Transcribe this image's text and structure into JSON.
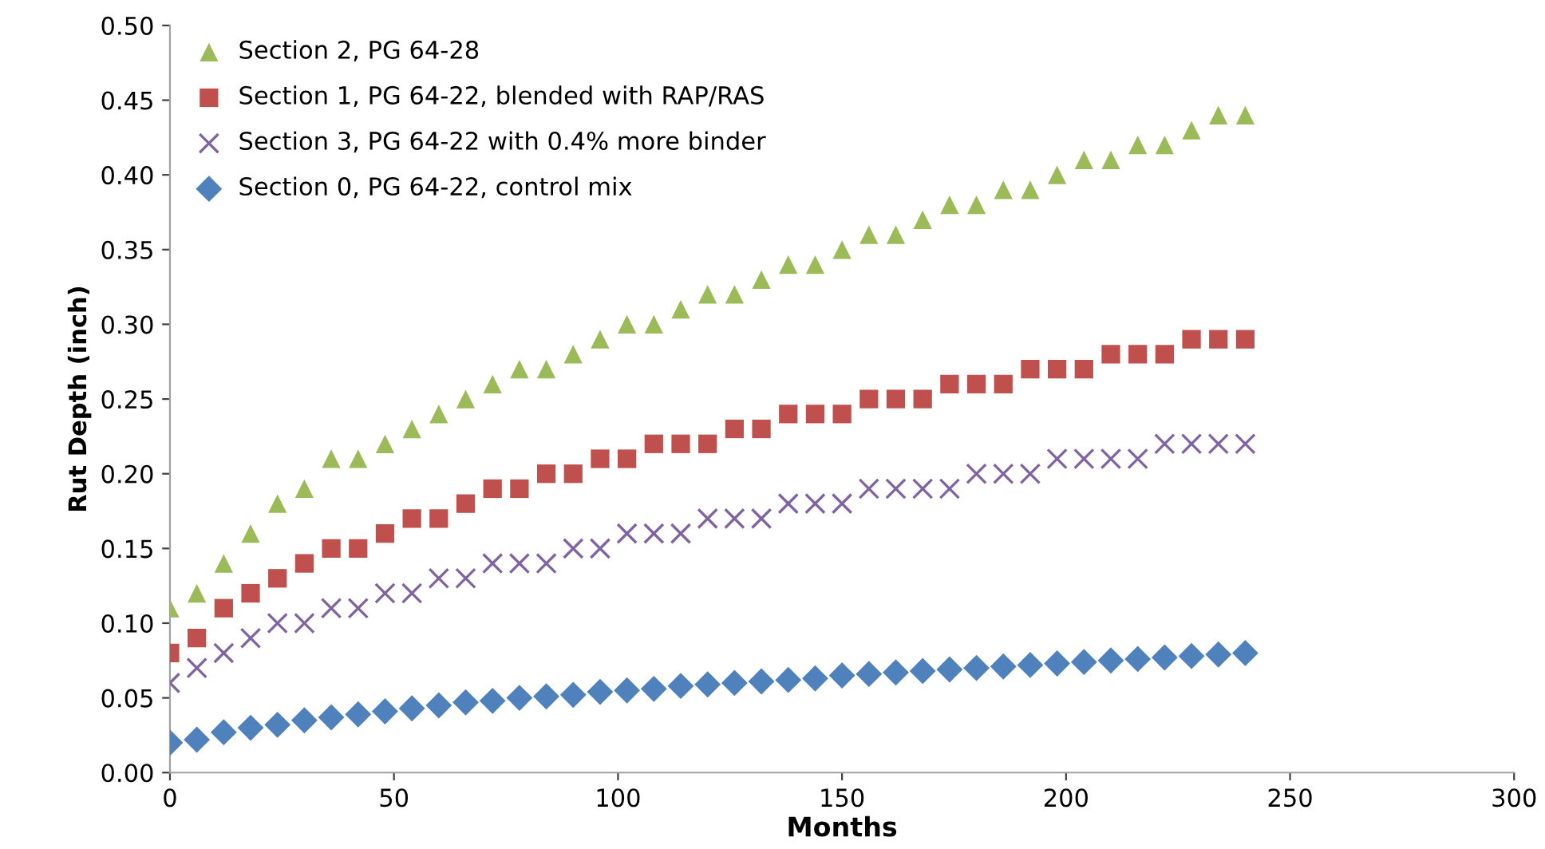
{
  "chart_data": {
    "type": "scatter",
    "xlabel": "Months",
    "ylabel": "Rut Depth (inch)",
    "xlim": [
      0,
      300
    ],
    "xticks": [
      0,
      50,
      100,
      150,
      200,
      250,
      300
    ],
    "ylim": [
      0,
      0.5
    ],
    "yticks": [
      {
        "value": 0,
        "label": "0.00"
      },
      {
        "value": 0.05,
        "label": "0.05"
      },
      {
        "value": 0.1,
        "label": "0.10"
      },
      {
        "value": 0.15,
        "label": "0.15"
      },
      {
        "value": 0.2,
        "label": "0.20"
      },
      {
        "value": 0.25,
        "label": "0.25"
      },
      {
        "value": 0.3,
        "label": "0.30"
      },
      {
        "value": 0.35,
        "label": "0.35"
      },
      {
        "value": 0.4,
        "label": "0.40"
      },
      {
        "value": 0.45,
        "label": "0.45"
      },
      {
        "value": 0.5,
        "label": "0.50"
      }
    ],
    "x": [
      0,
      6,
      12,
      18,
      24,
      30,
      36,
      42,
      48,
      54,
      60,
      66,
      72,
      78,
      84,
      90,
      96,
      102,
      108,
      114,
      120,
      126,
      132,
      138,
      144,
      150,
      156,
      162,
      168,
      174,
      180,
      186,
      192,
      198,
      204,
      210,
      216,
      222,
      228,
      234,
      240
    ],
    "grid": false,
    "legend": "top left",
    "series": [
      {
        "name": "Section 2, PG 64-28",
        "color": "#9bbb59",
        "marker": "triangle",
        "values": [
          0.11,
          0.12,
          0.14,
          0.16,
          0.18,
          0.19,
          0.21,
          0.21,
          0.22,
          0.23,
          0.24,
          0.25,
          0.26,
          0.27,
          0.27,
          0.28,
          0.29,
          0.3,
          0.3,
          0.31,
          0.32,
          0.32,
          0.33,
          0.34,
          0.34,
          0.35,
          0.36,
          0.36,
          0.37,
          0.38,
          0.38,
          0.39,
          0.39,
          0.4,
          0.41,
          0.41,
          0.42,
          0.42,
          0.43,
          0.44,
          0.44
        ]
      },
      {
        "name": "Section 1, PG 64-22, blended with RAP/RAS",
        "color": "#c0504d",
        "marker": "square",
        "values": [
          0.08,
          0.09,
          0.11,
          0.12,
          0.13,
          0.14,
          0.15,
          0.15,
          0.16,
          0.17,
          0.17,
          0.18,
          0.19,
          0.19,
          0.2,
          0.2,
          0.21,
          0.21,
          0.22,
          0.22,
          0.22,
          0.23,
          0.23,
          0.24,
          0.24,
          0.24,
          0.25,
          0.25,
          0.25,
          0.26,
          0.26,
          0.26,
          0.27,
          0.27,
          0.27,
          0.28,
          0.28,
          0.28,
          0.29,
          0.29,
          0.29
        ]
      },
      {
        "name": "Section 3, PG 64-22 with 0.4% more binder",
        "color": "#8064a2",
        "marker": "cross",
        "values": [
          0.06,
          0.07,
          0.08,
          0.09,
          0.1,
          0.1,
          0.11,
          0.11,
          0.12,
          0.12,
          0.13,
          0.13,
          0.14,
          0.14,
          0.14,
          0.15,
          0.15,
          0.16,
          0.16,
          0.16,
          0.17,
          0.17,
          0.17,
          0.18,
          0.18,
          0.18,
          0.19,
          0.19,
          0.19,
          0.19,
          0.2,
          0.2,
          0.2,
          0.21,
          0.21,
          0.21,
          0.21,
          0.22,
          0.22,
          0.22,
          0.22
        ]
      },
      {
        "name": "Section 0, PG 64-22, control mix",
        "color": "#4f81bd",
        "marker": "diamond",
        "values": [
          0.02,
          0.022,
          0.027,
          0.03,
          0.032,
          0.035,
          0.037,
          0.039,
          0.041,
          0.043,
          0.045,
          0.047,
          0.048,
          0.05,
          0.051,
          0.052,
          0.054,
          0.055,
          0.056,
          0.058,
          0.059,
          0.06,
          0.061,
          0.062,
          0.063,
          0.065,
          0.066,
          0.067,
          0.068,
          0.069,
          0.07,
          0.071,
          0.072,
          0.073,
          0.074,
          0.075,
          0.076,
          0.077,
          0.078,
          0.079,
          0.08
        ]
      }
    ]
  }
}
